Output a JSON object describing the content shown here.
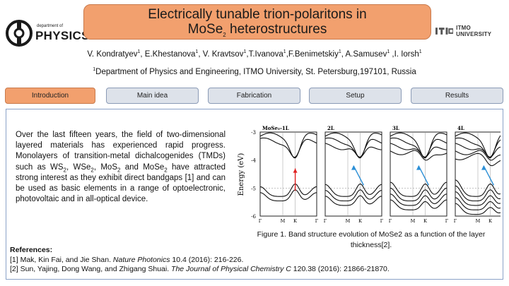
{
  "header": {
    "logo_left": {
      "small": "department of",
      "big": "PHYSICS"
    },
    "title_line1": "Electrically tunable trion-polaritons in",
    "title_line2_prefix": "MoSe",
    "title_line2_sub": "2",
    "title_line2_suffix": " heterostructures",
    "logo_right_text": "ITMO UNIVERSITY"
  },
  "authors": [
    {
      "name": "V. Kondratyev",
      "sup": "1",
      "sep": ", "
    },
    {
      "name": "E.Khestanova",
      "sup": "1",
      "sep": ", "
    },
    {
      "name": "V. Kravtsov",
      "sup": "1",
      "sep": ","
    },
    {
      "name": "T.Ivanova",
      "sup": "1",
      "sep": ","
    },
    {
      "name": "F.Benimetskiy",
      "sup": "1",
      "sep": ", "
    },
    {
      "name": "A.Samusev",
      "sup": "1",
      "sep": " ,"
    },
    {
      "name": "I. Iorsh",
      "sup": "1",
      "sep": ""
    }
  ],
  "affiliation": {
    "sup": "1",
    "text": "Department of Physics and Engineering, ITMO University, St. Petersburg,197101, Russia"
  },
  "nav": [
    {
      "label": "Introduction",
      "active": true
    },
    {
      "label": "Main idea",
      "active": false
    },
    {
      "label": "Fabrication",
      "active": false
    },
    {
      "label": "Setup",
      "active": false
    },
    {
      "label": "Results",
      "active": false
    }
  ],
  "intro": {
    "p1": "Over the last fifteen years, the field of two-dimensional layered materials has experienced rapid progress. Monolayers of transition-metal dichalcogenides (TMDs) such as WS",
    "s1": "2",
    "p2": ", WSe",
    "s2": "2",
    "p3": ", MoS",
    "s3": "2",
    "p4": " and MoSe",
    "s4": "2",
    "p5": " have attracted strong interest as they exhibit direct bandgaps [1] and can be used as basic elements in a range of optoelectronic, photovoltaic and in all-optical device."
  },
  "figure": {
    "panel_labels": [
      "MoSe₂-1L",
      "2L",
      "3L",
      "4L"
    ],
    "ylabel": "Energy (eV)",
    "y_ticks": [
      "-3",
      "-4",
      "-5",
      "-6"
    ],
    "x_ticks": [
      "Γ",
      "M",
      "K",
      "Γ"
    ],
    "arrow_colors": [
      "#e02020",
      "#2b8fd6",
      "#2b8fd6",
      "#2b8fd6"
    ],
    "caption": "Figure 1. Band structure evolution of MoSe2 as a function of the layer thickness[2]."
  },
  "references": {
    "heading": "References:",
    "items": [
      {
        "pre": "[1] Mak, Kin Fai, and Jie Shan. ",
        "journal": "Nature Photonics",
        "post": " 10.4 (2016): 216-226."
      },
      {
        "pre": "[2] Sun, Yajing, Dong Wang, and Zhigang Shuai. ",
        "journal": "The Journal of Physical Chemistry C",
        "post": " 120.38 (2016): 21866-21870."
      }
    ]
  }
}
